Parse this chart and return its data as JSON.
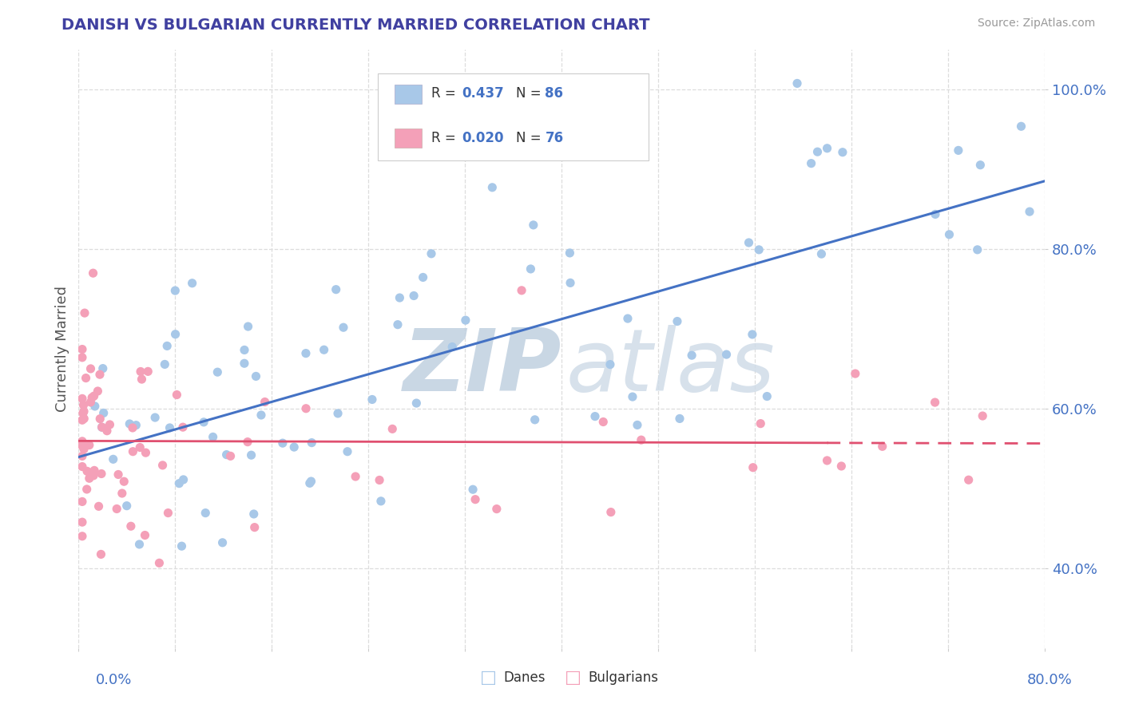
{
  "title": "DANISH VS BULGARIAN CURRENTLY MARRIED CORRELATION CHART",
  "source_text": "Source: ZipAtlas.com",
  "ylabel": "Currently Married",
  "xmin": 0.0,
  "xmax": 0.8,
  "ymin": 0.3,
  "ymax": 1.05,
  "yticks": [
    0.4,
    0.6,
    0.8,
    1.0
  ],
  "ytick_labels": [
    "40.0%",
    "60.0%",
    "80.0%",
    "100.0%"
  ],
  "danes_R": 0.437,
  "danes_N": 86,
  "bulgarians_R": 0.02,
  "bulgarians_N": 76,
  "danes_color": "#a8c8e8",
  "danes_line_color": "#4472c4",
  "bulgarians_color": "#f4a0b8",
  "bulgarians_line_color": "#e05070",
  "watermark_zip_color": "#c0d0e0",
  "watermark_atlas_color": "#d0dce8",
  "background_color": "#ffffff",
  "grid_color": "#dddddd",
  "title_color": "#4040a0",
  "ytick_color": "#4472c4",
  "source_color": "#999999"
}
